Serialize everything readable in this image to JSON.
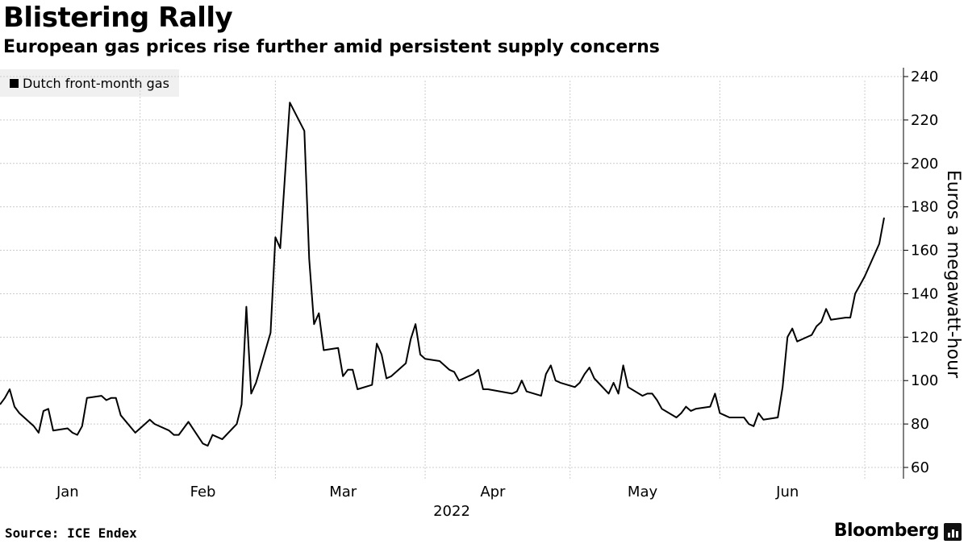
{
  "header": {
    "title": "Blistering Rally",
    "subtitle": "European gas prices rise further amid persistent supply concerns"
  },
  "footer": {
    "source": "Source: ICE Endex",
    "brand": "Bloomberg"
  },
  "colors": {
    "line": "#000000",
    "grid": "#cccccc",
    "legend_bg": "#f0f0f0"
  },
  "chart_data": {
    "type": "line",
    "title": "Blistering Rally",
    "subtitle": "European gas prices rise further amid persistent supply concerns",
    "ylabel": "Euros a megawatt-hour",
    "xlabel": "2022",
    "x_axis_label": "2022",
    "ylim": [
      55,
      242
    ],
    "y_ticks": [
      60,
      80,
      100,
      120,
      140,
      160,
      180,
      200,
      220,
      240
    ],
    "y_tick_labels": [
      "60",
      "80",
      "100",
      "120",
      "140",
      "160",
      "180",
      "200",
      "220",
      "240"
    ],
    "month_labels": [
      "Jan",
      "Feb",
      "Mar",
      "Apr",
      "May",
      "Jun"
    ],
    "grid": true,
    "legend": "top-left",
    "series": [
      {
        "name": "Dutch front-month gas",
        "color": "#000000",
        "values": [
          [
            "2022-01-03",
            89
          ],
          [
            "2022-01-04",
            92
          ],
          [
            "2022-01-05",
            96
          ],
          [
            "2022-01-06",
            88
          ],
          [
            "2022-01-07",
            85
          ],
          [
            "2022-01-10",
            79
          ],
          [
            "2022-01-11",
            76
          ],
          [
            "2022-01-12",
            86
          ],
          [
            "2022-01-13",
            87
          ],
          [
            "2022-01-14",
            77
          ],
          [
            "2022-01-17",
            78
          ],
          [
            "2022-01-18",
            76
          ],
          [
            "2022-01-19",
            75
          ],
          [
            "2022-01-20",
            79
          ],
          [
            "2022-01-21",
            92
          ],
          [
            "2022-01-24",
            93
          ],
          [
            "2022-01-25",
            91
          ],
          [
            "2022-01-26",
            92
          ],
          [
            "2022-01-27",
            92
          ],
          [
            "2022-01-28",
            84
          ],
          [
            "2022-01-31",
            76
          ],
          [
            "2022-02-01",
            78
          ],
          [
            "2022-02-02",
            80
          ],
          [
            "2022-02-03",
            82
          ],
          [
            "2022-02-04",
            80
          ],
          [
            "2022-02-07",
            77
          ],
          [
            "2022-02-08",
            75
          ],
          [
            "2022-02-09",
            75
          ],
          [
            "2022-02-10",
            78
          ],
          [
            "2022-02-11",
            81
          ],
          [
            "2022-02-14",
            71
          ],
          [
            "2022-02-15",
            70
          ],
          [
            "2022-02-16",
            75
          ],
          [
            "2022-02-17",
            74
          ],
          [
            "2022-02-18",
            73
          ],
          [
            "2022-02-21",
            80
          ],
          [
            "2022-02-22",
            89
          ],
          [
            "2022-02-23",
            134
          ],
          [
            "2022-02-24",
            94
          ],
          [
            "2022-02-25",
            99
          ],
          [
            "2022-02-28",
            122
          ],
          [
            "2022-03-01",
            166
          ],
          [
            "2022-03-02",
            161
          ],
          [
            "2022-03-03",
            195
          ],
          [
            "2022-03-04",
            228
          ],
          [
            "2022-03-07",
            215
          ],
          [
            "2022-03-08",
            156
          ],
          [
            "2022-03-09",
            126
          ],
          [
            "2022-03-10",
            131
          ],
          [
            "2022-03-11",
            114
          ],
          [
            "2022-03-14",
            115
          ],
          [
            "2022-03-15",
            102
          ],
          [
            "2022-03-16",
            105
          ],
          [
            "2022-03-17",
            105
          ],
          [
            "2022-03-18",
            96
          ],
          [
            "2022-03-21",
            98
          ],
          [
            "2022-03-22",
            117
          ],
          [
            "2022-03-23",
            112
          ],
          [
            "2022-03-24",
            101
          ],
          [
            "2022-03-25",
            102
          ],
          [
            "2022-03-28",
            108
          ],
          [
            "2022-03-29",
            119
          ],
          [
            "2022-03-30",
            126
          ],
          [
            "2022-03-31",
            112
          ],
          [
            "2022-04-01",
            110
          ],
          [
            "2022-04-04",
            109
          ],
          [
            "2022-04-05",
            107
          ],
          [
            "2022-04-06",
            105
          ],
          [
            "2022-04-07",
            104
          ],
          [
            "2022-04-08",
            100
          ],
          [
            "2022-04-11",
            103
          ],
          [
            "2022-04-12",
            105
          ],
          [
            "2022-04-13",
            96
          ],
          [
            "2022-04-14",
            96
          ],
          [
            "2022-04-19",
            94
          ],
          [
            "2022-04-20",
            95
          ],
          [
            "2022-04-21",
            100
          ],
          [
            "2022-04-22",
            95
          ],
          [
            "2022-04-25",
            93
          ],
          [
            "2022-04-26",
            103
          ],
          [
            "2022-04-27",
            107
          ],
          [
            "2022-04-28",
            100
          ],
          [
            "2022-04-29",
            99
          ],
          [
            "2022-05-02",
            97
          ],
          [
            "2022-05-03",
            99
          ],
          [
            "2022-05-04",
            103
          ],
          [
            "2022-05-05",
            106
          ],
          [
            "2022-05-06",
            101
          ],
          [
            "2022-05-09",
            94
          ],
          [
            "2022-05-10",
            99
          ],
          [
            "2022-05-11",
            94
          ],
          [
            "2022-05-12",
            107
          ],
          [
            "2022-05-13",
            97
          ],
          [
            "2022-05-16",
            93
          ],
          [
            "2022-05-17",
            94
          ],
          [
            "2022-05-18",
            94
          ],
          [
            "2022-05-19",
            91
          ],
          [
            "2022-05-20",
            87
          ],
          [
            "2022-05-23",
            83
          ],
          [
            "2022-05-24",
            85
          ],
          [
            "2022-05-25",
            88
          ],
          [
            "2022-05-26",
            86
          ],
          [
            "2022-05-27",
            87
          ],
          [
            "2022-05-30",
            88
          ],
          [
            "2022-05-31",
            94
          ],
          [
            "2022-06-01",
            85
          ],
          [
            "2022-06-02",
            84
          ],
          [
            "2022-06-03",
            83
          ],
          [
            "2022-06-06",
            83
          ],
          [
            "2022-06-07",
            80
          ],
          [
            "2022-06-08",
            79
          ],
          [
            "2022-06-09",
            85
          ],
          [
            "2022-06-10",
            82
          ],
          [
            "2022-06-13",
            83
          ],
          [
            "2022-06-14",
            97
          ],
          [
            "2022-06-15",
            120
          ],
          [
            "2022-06-16",
            124
          ],
          [
            "2022-06-17",
            118
          ],
          [
            "2022-06-20",
            121
          ],
          [
            "2022-06-21",
            125
          ],
          [
            "2022-06-22",
            127
          ],
          [
            "2022-06-23",
            133
          ],
          [
            "2022-06-24",
            128
          ],
          [
            "2022-06-27",
            129
          ],
          [
            "2022-06-28",
            129
          ],
          [
            "2022-06-29",
            140
          ],
          [
            "2022-06-30",
            144
          ],
          [
            "2022-07-01",
            148
          ],
          [
            "2022-07-04",
            163
          ],
          [
            "2022-07-05",
            175
          ]
        ]
      }
    ]
  }
}
